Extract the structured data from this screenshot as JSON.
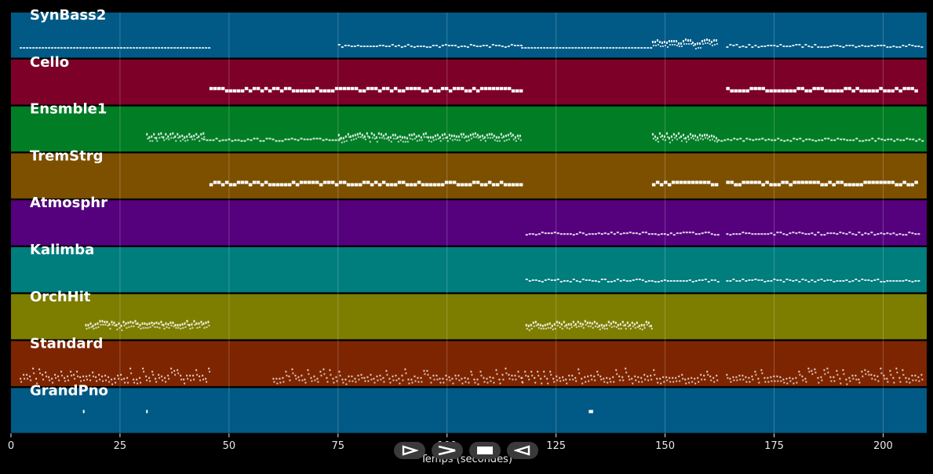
{
  "player": {
    "xlabel": "Temps (secondes)",
    "controls": [
      {
        "name": "play-button",
        "icon": "play-outline-icon"
      },
      {
        "name": "fast-forward-button",
        "icon": "fast-forward-icon"
      },
      {
        "name": "stop-button",
        "icon": "stop-icon"
      },
      {
        "name": "rewind-button",
        "icon": "rewind-icon"
      }
    ]
  },
  "chart_data": {
    "type": "piano-roll",
    "xlabel": "Temps (secondes)",
    "xlim": [
      0,
      210
    ],
    "xticks": [
      0,
      25,
      50,
      75,
      100,
      125,
      150,
      175,
      200
    ],
    "grid": true,
    "tracks": [
      {
        "name": "SynBass2",
        "color": "#005a85",
        "segments": [
          [
            2,
            45.5,
            "dash"
          ],
          [
            75,
            117,
            "pulse"
          ],
          [
            117,
            147,
            "dash"
          ],
          [
            147,
            162,
            "dense"
          ],
          [
            164,
            209,
            "pulse"
          ]
        ]
      },
      {
        "name": "Cello",
        "color": "#7d0028",
        "segments": [
          [
            45.5,
            117,
            "block"
          ],
          [
            164,
            208,
            "block"
          ]
        ]
      },
      {
        "name": "Ensmble1",
        "color": "#007d25",
        "segments": [
          [
            31,
            44,
            "dense"
          ],
          [
            44,
            75,
            "pulse"
          ],
          [
            75,
            117,
            "dense"
          ],
          [
            147,
            162,
            "dense"
          ],
          [
            162,
            209,
            "pulse"
          ]
        ]
      },
      {
        "name": "TremStrg",
        "color": "#7d5000",
        "segments": [
          [
            45.5,
            117,
            "block"
          ],
          [
            147,
            162,
            "block"
          ],
          [
            164,
            208,
            "block"
          ]
        ]
      },
      {
        "name": "Atmosphr",
        "color": "#55007d",
        "segments": [
          [
            118,
            162,
            "pulse"
          ],
          [
            164,
            208,
            "pulse"
          ]
        ]
      },
      {
        "name": "Kalimba",
        "color": "#007d7d",
        "segments": [
          [
            118,
            162,
            "pulse"
          ],
          [
            164,
            208,
            "pulse"
          ]
        ]
      },
      {
        "name": "OrchHit",
        "color": "#7d7d00",
        "segments": [
          [
            17,
            45.5,
            "dense"
          ],
          [
            118,
            147,
            "dense"
          ]
        ]
      },
      {
        "name": "Standard",
        "color": "#7d2500",
        "segments": [
          [
            2,
            45.5,
            "drums"
          ],
          [
            60,
            117,
            "drums"
          ],
          [
            117,
            162,
            "drums"
          ],
          [
            164,
            209,
            "drums"
          ]
        ]
      },
      {
        "name": "GrandPno",
        "color": "#005a85",
        "segments": [
          [
            16.5,
            16.8,
            "single"
          ],
          [
            31,
            31.3,
            "single"
          ],
          [
            132.5,
            133.5,
            "single"
          ]
        ]
      }
    ]
  }
}
